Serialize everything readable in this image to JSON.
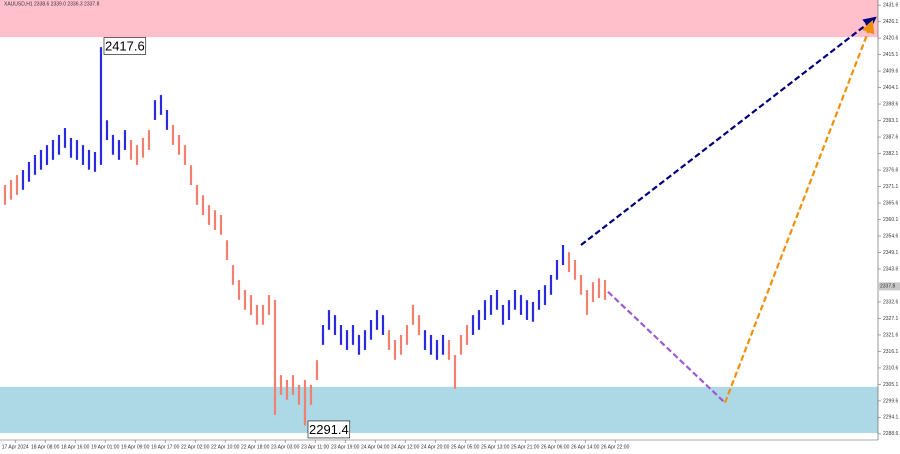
{
  "chart_data": {
    "type": "ohlc",
    "title": "XAUUSD,H1 2338.6 2339.0 2336.3 2337.8",
    "xlim": [
      -0.83,
      145.5
    ],
    "ylim": [
      2281.9,
      2433.3
    ],
    "xticks": [
      {
        "value": 1.7,
        "label": "17 Apr 2024"
      },
      {
        "value": 6.7,
        "label": "18 Apr 08:00"
      },
      {
        "value": 11.7,
        "label": "18 Apr 16:00"
      },
      {
        "value": 16.7,
        "label": "19 Apr 01:00"
      },
      {
        "value": 21.7,
        "label": "19 Apr 09:00"
      },
      {
        "value": 26.7,
        "label": "19 Apr 17:00"
      },
      {
        "value": 31.7,
        "label": "22 Apr 02:00"
      },
      {
        "value": 36.7,
        "label": "22 Apr 10:00"
      },
      {
        "value": 41.7,
        "label": "22 Apr 18:00"
      },
      {
        "value": 46.7,
        "label": "23 Apr 03:00"
      },
      {
        "value": 51.7,
        "label": "23 Apr 11:00"
      },
      {
        "value": 56.7,
        "label": "23 Apr 19:00"
      },
      {
        "value": 61.7,
        "label": "24 Apr 04:00"
      },
      {
        "value": 66.7,
        "label": "24 Apr 12:00"
      },
      {
        "value": 71.7,
        "label": "24 Apr 20:00"
      },
      {
        "value": 76.7,
        "label": "25 Apr 05:00"
      },
      {
        "value": 81.7,
        "label": "25 Apr 13:00"
      },
      {
        "value": 86.7,
        "label": "25 Apr 21:00"
      },
      {
        "value": 91.7,
        "label": "26 Apr 06:00"
      },
      {
        "value": 96.7,
        "label": "26 Apr 14:00"
      },
      {
        "value": 101.7,
        "label": "26 Apr 22:00"
      }
    ],
    "yticks": [
      2288.6,
      2294.1,
      2299.6,
      2305.1,
      2310.6,
      2316.1,
      2321.6,
      2327.1,
      2332.6,
      2338.1,
      2343.6,
      2349.1,
      2354.6,
      2360.1,
      2365.6,
      2371.1,
      2376.6,
      2382.1,
      2387.6,
      2393.1,
      2398.6,
      2404.1,
      2409.6,
      2415.1,
      2420.6,
      2426.1,
      2431.6
    ],
    "zones": [
      {
        "from": 2420.9,
        "to": 2433.3,
        "color": "#ffc0cb"
      },
      {
        "from": 2288.9,
        "to": 2304.3,
        "color": "#add8e6"
      }
    ],
    "series": [
      {
        "color": "#f08070",
        "x0": 0,
        "highs": [
          2371.6,
          2373.3,
          2374.9
        ],
        "lows": [
          2365.0,
          2366.7,
          2368.3
        ]
      },
      {
        "color": "#2a2ae0",
        "x0": 3,
        "highs": [
          2376.6,
          2379.3,
          2381.6,
          2383.3,
          2384.9,
          2386.6,
          2388.3,
          2390.6,
          2387.3,
          2386.6,
          2384.9,
          2383.3,
          2382.6,
          2417.6,
          2393.2,
          2388.3,
          2386.6,
          2389.9
        ],
        "lows": [
          2370.0,
          2372.7,
          2375.0,
          2376.7,
          2378.3,
          2380.0,
          2381.7,
          2384.0,
          2380.7,
          2380.0,
          2378.3,
          2376.7,
          2376.0,
          2378.3,
          2386.6,
          2381.7,
          2380.0,
          2383.3
        ]
      },
      {
        "color": "#f08070",
        "x0": 21,
        "highs": [
          2386.6,
          2384.9,
          2387.3,
          2389.9
        ],
        "lows": [
          2380.0,
          2378.3,
          2380.7,
          2383.3
        ]
      },
      {
        "color": "#2a2ae0",
        "x0": 25,
        "highs": [
          2399.9,
          2401.6,
          2396.6
        ],
        "lows": [
          2393.3,
          2395.0,
          2390.0
        ]
      },
      {
        "color": "#f08070",
        "x0": 28,
        "highs": [
          2391.6,
          2388.3,
          2384.9,
          2378.2,
          2371.6,
          2368.2,
          2364.9,
          2363.2,
          2361.6,
          2353.2,
          2344.9,
          2339.9,
          2336.6,
          2334.9,
          2331.6,
          2331.6,
          2334.9,
          2333.3,
          2308.2,
          2306.6,
          2308.2,
          2304.9,
          2306.6,
          2304.9,
          2313.2
        ],
        "lows": [
          2385.0,
          2381.7,
          2378.3,
          2371.6,
          2365.0,
          2361.6,
          2358.3,
          2356.6,
          2355.0,
          2346.6,
          2338.3,
          2333.3,
          2330.0,
          2328.3,
          2325.0,
          2325.0,
          2328.3,
          2295.0,
          2301.6,
          2300.0,
          2301.6,
          2298.3,
          2291.4,
          2298.3,
          2306.6
        ]
      },
      {
        "color": "#2a2ae0",
        "x0": 53,
        "highs": [
          2324.9,
          2329.9,
          2328.2,
          2324.9,
          2323.2,
          2324.9,
          2321.6,
          2323.2,
          2326.6,
          2329.9,
          2328.2
        ],
        "lows": [
          2318.3,
          2323.3,
          2321.6,
          2318.3,
          2316.6,
          2318.3,
          2315.0,
          2316.6,
          2320.0,
          2323.3,
          2321.6
        ]
      },
      {
        "color": "#f08070",
        "x0": 64,
        "highs": [
          2323.2,
          2319.9,
          2321.6,
          2324.9,
          2331.6,
          2328.2
        ],
        "lows": [
          2316.6,
          2313.3,
          2315.0,
          2318.3,
          2325.0,
          2321.6
        ]
      },
      {
        "color": "#2a2ae0",
        "x0": 70,
        "highs": [
          2323.2,
          2321.6,
          2319.9,
          2321.6
        ],
        "lows": [
          2316.6,
          2315.0,
          2313.3,
          2315.0
        ]
      },
      {
        "color": "#f08070",
        "x0": 74,
        "highs": [
          2319.9,
          2314.9,
          2321.6,
          2324.9
        ],
        "lows": [
          2313.3,
          2303.6,
          2315.0,
          2318.3
        ]
      },
      {
        "color": "#2a2ae0",
        "x0": 78,
        "highs": [
          2328.2,
          2329.9,
          2333.2,
          2334.9,
          2336.6,
          2331.6,
          2333.2,
          2336.6,
          2334.9,
          2333.2,
          2332.6,
          2336.6,
          2338.2,
          2341.6,
          2346.6,
          2351.6
        ],
        "lows": [
          2321.6,
          2323.3,
          2326.6,
          2328.3,
          2330.0,
          2325.0,
          2326.6,
          2330.0,
          2328.3,
          2326.6,
          2326.0,
          2330.0,
          2331.6,
          2335.0,
          2340.0,
          2344.9
        ]
      },
      {
        "color": "#f08070",
        "x0": 94,
        "highs": [
          2349.2,
          2346.6,
          2341.6,
          2336.6,
          2339.2,
          2340.5,
          2339.9
        ],
        "lows": [
          2342.6,
          2340.0,
          2335.0,
          2328.3,
          2332.6,
          2333.9,
          2333.3
        ]
      }
    ],
    "forecasts": [
      {
        "color": "#00007f",
        "arrow": true,
        "x": [
          96,
          145
        ],
        "y": [
          2351.6,
          2427.3
        ]
      },
      {
        "color": "#a05ad0",
        "arrow": false,
        "x": [
          100.5,
          120
        ],
        "y": [
          2336.0,
          2299.0
        ]
      },
      {
        "color": "#f0900a",
        "arrow": true,
        "x": [
          120,
          144.5
        ],
        "y": [
          2299.0,
          2426.0
        ]
      }
    ],
    "annotations": [
      {
        "x": 16,
        "value": 2417.6,
        "side": "above"
      },
      {
        "x": 50,
        "value": 2291.4,
        "side": "below"
      }
    ],
    "last_price": 2337.8
  }
}
